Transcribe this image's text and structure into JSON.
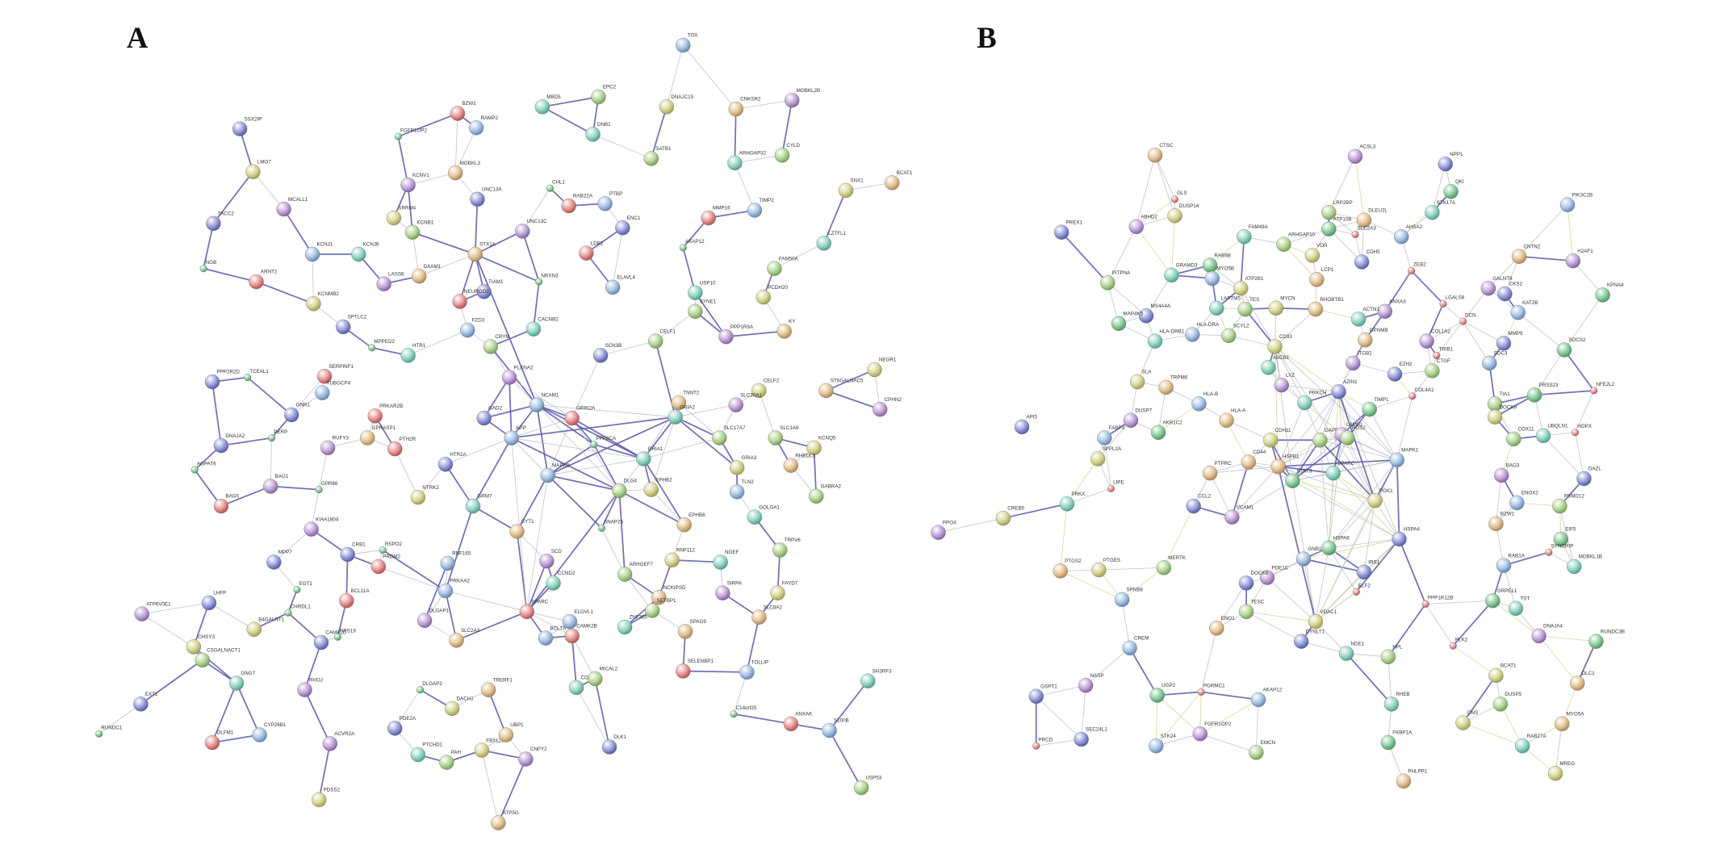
{
  "panels": [
    {
      "label": "A",
      "nodes": [
        "TOX",
        "MBD5",
        "EPC2",
        "DNAJC15",
        "CNKSR2",
        "MOBKL2B",
        "SSX2IP",
        "FGFR1OP2",
        "BZW1",
        "RAMP2",
        "DNB1",
        "SATB1",
        "LMO7",
        "MOBKL3",
        "KCNV1",
        "UNC13A",
        "CHL1",
        "RAB22A",
        "PTBP",
        "ARHGAP32",
        "CYLD",
        "SNX1",
        "BCAT1",
        "MCALL1",
        "TACC2",
        "NGB",
        "ARNT2",
        "KCNJ1",
        "KCNJ6",
        "KCNB1",
        "SRRM4",
        "STX1A",
        "UNC13C",
        "ENC1",
        "AKAP12",
        "MMP16",
        "TIMP2",
        "LZTFL1",
        "FAM50A",
        "KCNMB2",
        "DAAM1",
        "LASS6",
        "TIAM1",
        "NRXN3",
        "LDB2",
        "ELAVL4",
        "USP10",
        "SYNE1",
        "PCDH20",
        "KY",
        "PPP1R9A",
        "SPTLC2",
        "MPPED2",
        "NEUROD2",
        "FZD3",
        "CACNB2",
        "CELF1",
        "NEGR1",
        "ST6GALNAC5",
        "CPHN2",
        "PPP2R2D",
        "TCEAL1",
        "SERPINF1",
        "TUBGCP4",
        "HTR1",
        "CRYM",
        "CELF2",
        "TNNT2",
        "SLC30A1",
        "GNR1",
        "PERP",
        "PRKAR2B",
        "NCAM1",
        "GRIA2",
        "SLC1A6",
        "KCNQ5",
        "GPRASP1",
        "RUFY3",
        "DNAJA2",
        "AGPAT6",
        "PTH2R",
        "MAPK3",
        "GRIA1",
        "SLC17A7",
        "GRIA3",
        "RHBDL3",
        "BAG1",
        "HTR2A",
        "GPR86",
        "BAG5",
        "TLN2",
        "GOLGA1",
        "GABRA2",
        "EPHB2",
        "EPHB6",
        "KIAA1804",
        "CRB1",
        "RSPO2",
        "PRDM2",
        "RNF165",
        "NGEF",
        "TRPV6",
        "FAYD7",
        "SLC8A2",
        "SIRPA",
        "MPP7",
        "EGT1",
        "BCL11A",
        "PRKAA2",
        "CCND2",
        "ARHGEF7",
        "RNF112",
        "NCKIPSD",
        "ATP6V0E1",
        "LHFP",
        "CHRDL1",
        "SPARC",
        "ELOVL1",
        "ZNF385",
        "SETBP1",
        "B4GALNT1",
        "SLC2A3",
        "DLGAP1",
        "CAMK2D",
        "RPS19",
        "CAMK2B",
        "BCL7A",
        "GNG7",
        "CSGALNACT1",
        "CHSY3",
        "SPAG9",
        "RHOJ",
        "PDE2A",
        "DLGAP2",
        "SELENBP1",
        "TOLLIP",
        "COL5A2",
        "MICAL2",
        "DACH1",
        "TRERF1",
        "ACVR2A",
        "EXT1",
        "RUNDC1",
        "OLFM1",
        "CYP26B1",
        "PTCHD1",
        "PAH",
        "FBXL20",
        "UBP1",
        "CNPY2",
        "DLK1",
        "C14orf25",
        "ANXA6",
        "S100B",
        "SH3RF3",
        "USP53",
        "PDSS2",
        "ATP5G",
        "PLXNA2",
        "SCN3B",
        "PPP3CA",
        "GRIN2A",
        "APP",
        "GRM7",
        "DLG4",
        "NTRK2",
        "SYT1",
        "SCD",
        "GAD2",
        "SNAP25"
      ]
    },
    {
      "label": "B",
      "nodes": [
        "CTSC",
        "ACSL3",
        "NPP1",
        "QKI",
        "GLS",
        "PIK3C2B",
        "STK17A",
        "LRP2BP",
        "DUSP14",
        "DLEU2L",
        "ABHD2",
        "PREX1",
        "ATP10B",
        "SLC2A3",
        "AHSA2",
        "FAM49A",
        "ARHGAP10",
        "VDR",
        "CNTN2",
        "H2AF1",
        "CDH5",
        "RAB6B",
        "ZEB2",
        "MYO5B",
        "GRAMD3",
        "PITPNA",
        "ATP2B1",
        "LCP1",
        "GALNT6",
        "CKS2",
        "KPNA4",
        "LGALS8",
        "KAT2B",
        "LAPTM5",
        "TES",
        "MYCN",
        "RHOBTB1",
        "ANXA3",
        "MS4A4A",
        "MAP4K5",
        "DCN",
        "HLA-DRA",
        "HLA-DRB1",
        "SCYL2",
        "CD93",
        "GPNMB",
        "COL1A2",
        "MMP9",
        "SOCS2",
        "TRIB1",
        "SDC3",
        "ABCB1",
        "CTGF",
        "SLA",
        "TRPM6",
        "LYZ",
        "AZIN1",
        "PRSS23",
        "NFE2L2",
        "HLA-B",
        "PRKCH",
        "TIA1",
        "DOCK9",
        "HLA-A",
        "DUSP7",
        "API5",
        "AKR1C2",
        "HOPX",
        "FABP3",
        "UBQLN1",
        "COX11",
        "SPPL2A",
        "HSPB1",
        "BAG3",
        "DAZL",
        "STAT3",
        "LIPE",
        "ENOX2",
        "PRKX",
        "PSMD12",
        "CREB5",
        "BZW1",
        "PPOX",
        "HSPA4",
        "EIF5",
        "SYNCRIP",
        "RAB1A",
        "MOBKL1B",
        "MERTK",
        "PTGES",
        "PTGS2",
        "PDE1C",
        "DOCK8",
        "GRPEL1",
        "PPP1R12B",
        "SPNB8",
        "TST",
        "TESC",
        "VDAC1",
        "ENO1",
        "DNAJA4",
        "DYNLT1",
        "RUNDC3B",
        "PLK2",
        "CREM",
        "NDE1",
        "NPL",
        "BCAT1",
        "DLC1",
        "NASP",
        "GSPT1",
        "UGP2",
        "PGRMC1",
        "AKAP12",
        "RHEB",
        "DUSP5",
        "DNS",
        "MYO5A",
        "FGFR1OP2",
        "SEC24L1",
        "FKBP1A",
        "PRCD",
        "STK24",
        "RAB27A",
        "EMCN",
        "MREG",
        "PHLPP1",
        "ITGB2",
        "EZH2",
        "TIMP1",
        "COL4A1",
        "MAPK1",
        "SPARC",
        "GAPDH",
        "PGK1",
        "CD44",
        "LAMB1",
        "IRS1",
        "HSPA8",
        "ELF2",
        "GNB1",
        "ACTN1",
        "RGS2",
        "CDH11",
        "PTPRC",
        "VCAM1",
        "CCL2"
      ]
    }
  ]
}
